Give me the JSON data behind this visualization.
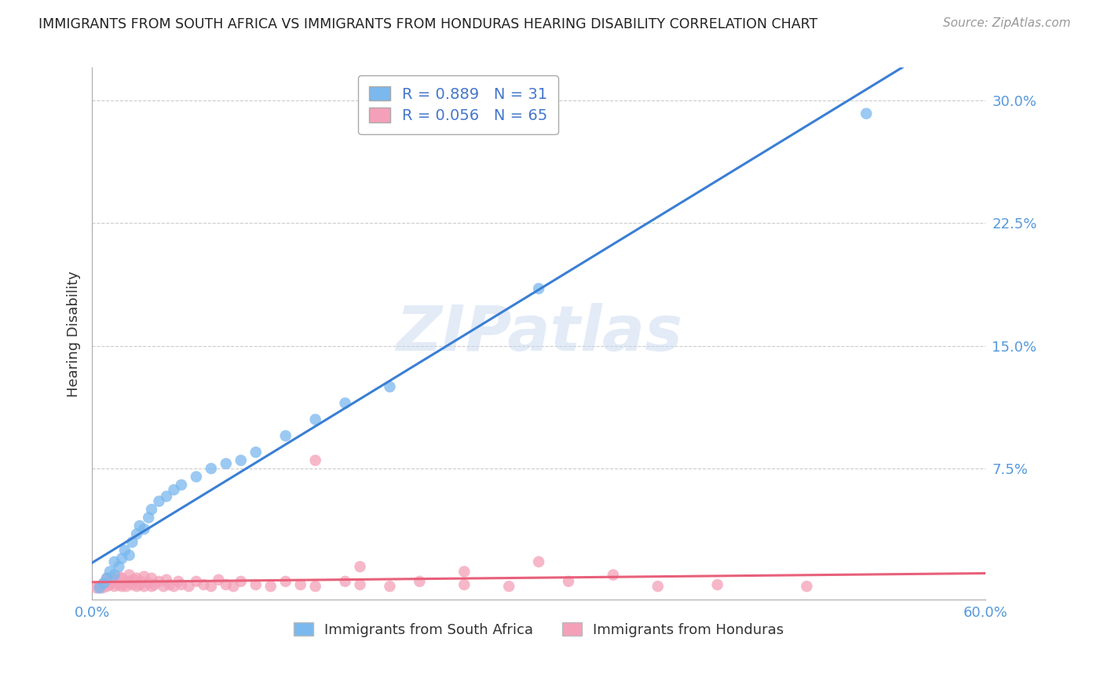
{
  "title": "IMMIGRANTS FROM SOUTH AFRICA VS IMMIGRANTS FROM HONDURAS HEARING DISABILITY CORRELATION CHART",
  "source": "Source: ZipAtlas.com",
  "ylabel": "Hearing Disability",
  "watermark": "ZIPatlas",
  "xlim": [
    0.0,
    0.6
  ],
  "ylim": [
    -0.005,
    0.32
  ],
  "xticks": [
    0.0,
    0.1,
    0.2,
    0.3,
    0.4,
    0.5,
    0.6
  ],
  "xticklabels": [
    "0.0%",
    "",
    "",
    "",
    "",
    "",
    "60.0%"
  ],
  "yticks": [
    0.0,
    0.075,
    0.15,
    0.225,
    0.3
  ],
  "yticklabels": [
    "",
    "7.5%",
    "15.0%",
    "22.5%",
    "30.0%"
  ],
  "south_africa_color": "#7ab8ee",
  "honduras_color": "#f4a0b8",
  "south_africa_line_color": "#3a7fd4",
  "honduras_line_color": "#e8607a",
  "south_africa_R": 0.889,
  "south_africa_N": 31,
  "honduras_R": 0.056,
  "honduras_N": 65,
  "legend_label_sa": "Immigrants from South Africa",
  "legend_label_hn": "Immigrants from Honduras",
  "sa_x": [
    0.005,
    0.008,
    0.01,
    0.012,
    0.015,
    0.015,
    0.018,
    0.02,
    0.022,
    0.025,
    0.027,
    0.03,
    0.032,
    0.035,
    0.038,
    0.04,
    0.045,
    0.05,
    0.055,
    0.06,
    0.07,
    0.08,
    0.09,
    0.1,
    0.11,
    0.13,
    0.15,
    0.17,
    0.2,
    0.3,
    0.52
  ],
  "sa_y": [
    0.002,
    0.005,
    0.008,
    0.012,
    0.01,
    0.018,
    0.015,
    0.02,
    0.025,
    0.022,
    0.03,
    0.035,
    0.04,
    0.038,
    0.045,
    0.05,
    0.055,
    0.058,
    0.062,
    0.065,
    0.07,
    0.075,
    0.078,
    0.08,
    0.085,
    0.095,
    0.105,
    0.115,
    0.125,
    0.185,
    0.292
  ],
  "hn_x": [
    0.003,
    0.005,
    0.007,
    0.008,
    0.01,
    0.01,
    0.012,
    0.013,
    0.015,
    0.015,
    0.018,
    0.018,
    0.02,
    0.02,
    0.022,
    0.023,
    0.025,
    0.025,
    0.027,
    0.028,
    0.03,
    0.03,
    0.032,
    0.033,
    0.035,
    0.035,
    0.038,
    0.04,
    0.04,
    0.042,
    0.045,
    0.048,
    0.05,
    0.052,
    0.055,
    0.058,
    0.06,
    0.065,
    0.07,
    0.075,
    0.08,
    0.085,
    0.09,
    0.095,
    0.1,
    0.11,
    0.12,
    0.13,
    0.14,
    0.15,
    0.17,
    0.18,
    0.2,
    0.22,
    0.25,
    0.28,
    0.32,
    0.38,
    0.42,
    0.48,
    0.3,
    0.15,
    0.18,
    0.25,
    0.35
  ],
  "hn_y": [
    0.002,
    0.003,
    0.002,
    0.005,
    0.003,
    0.008,
    0.004,
    0.006,
    0.003,
    0.007,
    0.004,
    0.009,
    0.003,
    0.008,
    0.005,
    0.003,
    0.006,
    0.01,
    0.004,
    0.007,
    0.003,
    0.008,
    0.004,
    0.006,
    0.003,
    0.009,
    0.005,
    0.003,
    0.008,
    0.004,
    0.006,
    0.003,
    0.007,
    0.004,
    0.003,
    0.006,
    0.004,
    0.003,
    0.006,
    0.004,
    0.003,
    0.007,
    0.004,
    0.003,
    0.006,
    0.004,
    0.003,
    0.006,
    0.004,
    0.003,
    0.006,
    0.004,
    0.003,
    0.006,
    0.004,
    0.003,
    0.006,
    0.003,
    0.004,
    0.003,
    0.018,
    0.08,
    0.015,
    0.012,
    0.01
  ]
}
